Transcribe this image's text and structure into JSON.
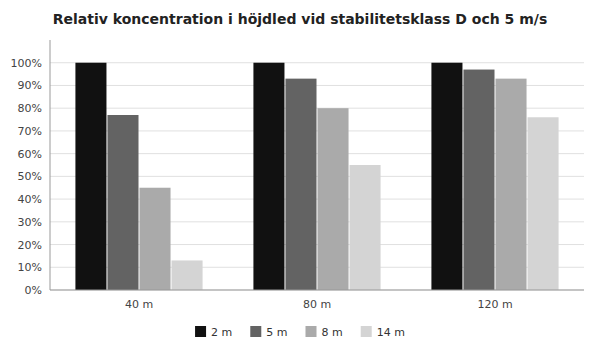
{
  "chart_data": {
    "type": "bar",
    "title": "Relativ koncentration i höjdled vid stabilitetsklass D och 5 m/s",
    "categories": [
      "40 m",
      "80 m",
      "120 m"
    ],
    "series": [
      {
        "name": "2 m",
        "color": "#111111",
        "values": [
          1.0,
          1.0,
          1.0
        ]
      },
      {
        "name": "5 m",
        "color": "#636363",
        "values": [
          0.77,
          0.93,
          0.97
        ]
      },
      {
        "name": "8 m",
        "color": "#aaaaaa",
        "values": [
          0.45,
          0.8,
          0.93
        ]
      },
      {
        "name": "14 m",
        "color": "#d4d4d4",
        "values": [
          0.13,
          0.55,
          0.76
        ]
      }
    ],
    "ylim": [
      0,
      1.1
    ],
    "yticks": [
      {
        "value": 0,
        "label": "0%"
      },
      {
        "value": 0.1,
        "label": "10%"
      },
      {
        "value": 0.2,
        "label": "20%"
      },
      {
        "value": 0.3,
        "label": "30%"
      },
      {
        "value": 0.4,
        "label": "40%"
      },
      {
        "value": 0.5,
        "label": "50%"
      },
      {
        "value": 0.6,
        "label": "60%"
      },
      {
        "value": 0.7,
        "label": "70%"
      },
      {
        "value": 0.8,
        "label": "80%"
      },
      {
        "value": 0.9,
        "label": "90%"
      },
      {
        "value": 1.0,
        "label": "100%"
      }
    ],
    "grid": true,
    "legend": "bottom"
  }
}
